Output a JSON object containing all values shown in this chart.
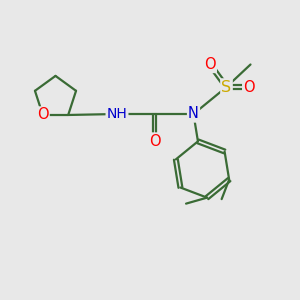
{
  "bg_color": "#e8e8e8",
  "bond_color": "#3a6b35",
  "atom_colors": {
    "O": "#ff0000",
    "N": "#0000cd",
    "S": "#ccaa00",
    "H": "#606060"
  },
  "line_width": 1.6,
  "font_size_atom": 10.5,
  "font_size_label": 9.5
}
